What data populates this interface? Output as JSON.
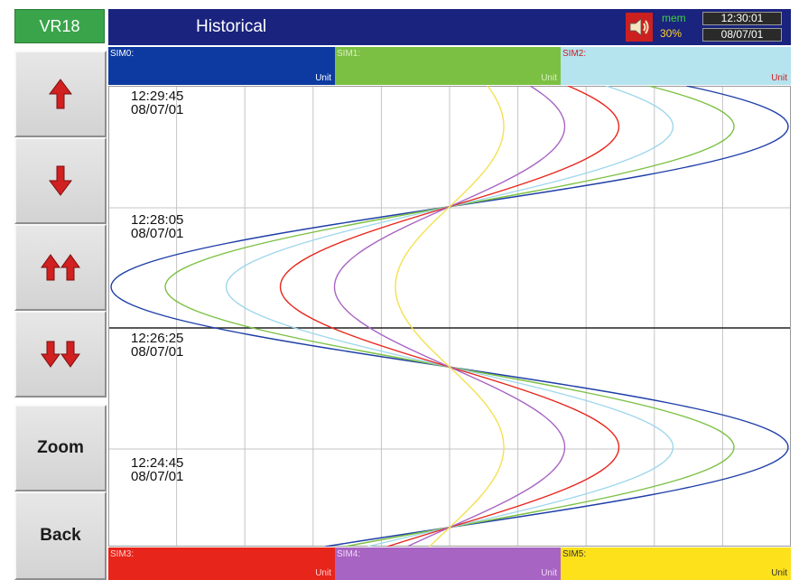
{
  "header": {
    "device": "VR18",
    "title": "Historical",
    "mem_label": "mem",
    "mem_value": "30%",
    "time": "12:30:01",
    "date": "08/07/01",
    "speaker_icon": "speaker-icon"
  },
  "side_buttons": [
    {
      "name": "scroll-up-button",
      "icon": "arrow-up-icon"
    },
    {
      "name": "scroll-down-button",
      "icon": "arrow-down-icon"
    },
    {
      "name": "page-up-button",
      "icon": "double-arrow-up-icon"
    },
    {
      "name": "page-down-button",
      "icon": "double-arrow-down-icon"
    },
    {
      "name": "zoom-button",
      "label": "Zoom"
    },
    {
      "name": "back-button",
      "label": "Back"
    }
  ],
  "channels_top": [
    {
      "name": "SIM0:",
      "unit": "Unit",
      "bg": "#0d3aa0",
      "text": "#ffffff"
    },
    {
      "name": "SIM1:",
      "unit": "Unit",
      "bg": "#7cc043",
      "text": "#d9f0c0"
    },
    {
      "name": "SIM2:",
      "unit": "Unit",
      "bg": "#b5e3ee",
      "text": "#cc2222"
    }
  ],
  "channels_bottom": [
    {
      "name": "SIM3:",
      "unit": "Unit",
      "bg": "#e8251b",
      "text": "#ffd0d0"
    },
    {
      "name": "SIM4:",
      "unit": "Unit",
      "bg": "#a864c3",
      "text": "#f0d8f8"
    },
    {
      "name": "SIM5:",
      "unit": "Unit",
      "bg": "#fde11a",
      "text": "#333333"
    }
  ],
  "timestamps": [
    {
      "time": "12:29:45",
      "date": "08/07/01"
    },
    {
      "time": "12:28:05",
      "date": "08/07/01"
    },
    {
      "time": "12:26:25",
      "date": "08/07/01"
    },
    {
      "time": "12:24:45",
      "date": "08/07/01"
    }
  ],
  "chart_data": {
    "type": "line",
    "orientation": "vertical-time",
    "grid": true,
    "series_colors": [
      "#1f3fa8",
      "#7cc043",
      "#9fd7ec",
      "#e8251b",
      "#a864c3",
      "#f5e050"
    ],
    "series_relative_amplitude": [
      1.0,
      0.84,
      0.66,
      0.5,
      0.34,
      0.16
    ]
  }
}
